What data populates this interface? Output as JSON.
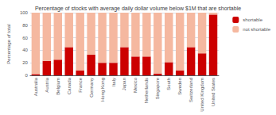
{
  "chart_data": {
    "type": "bar",
    "title": "Percentage of stocks with average daily dollar volume below $1M that are shortable",
    "ylabel": "Percentage of total",
    "categories": [
      "Australia",
      "Austria",
      "Belgium",
      "Canada",
      "France",
      "Germany",
      "Hong Kong",
      "Italy",
      "Japan",
      "Mexico",
      "Netherlands",
      "Singapore",
      "South",
      "Sweden",
      "Switzerland",
      "United Kingdom",
      "United States"
    ],
    "series": [
      {
        "name": "shortable",
        "color": "#cc0000",
        "values": [
          2,
          23,
          25,
          45,
          8,
          33,
          20,
          20,
          45,
          30,
          30,
          3,
          21,
          8,
          45,
          35,
          97
        ]
      },
      {
        "name": "not shortable",
        "color": "#f5b8a0",
        "values": [
          98,
          77,
          75,
          55,
          92,
          67,
          80,
          80,
          55,
          70,
          70,
          97,
          79,
          92,
          55,
          65,
          3
        ]
      }
    ],
    "stacked": true,
    "ylim": [
      0,
      100
    ],
    "yticks": [
      0,
      20,
      40,
      60,
      80,
      100
    ],
    "grid": true,
    "legend": "upper right"
  }
}
